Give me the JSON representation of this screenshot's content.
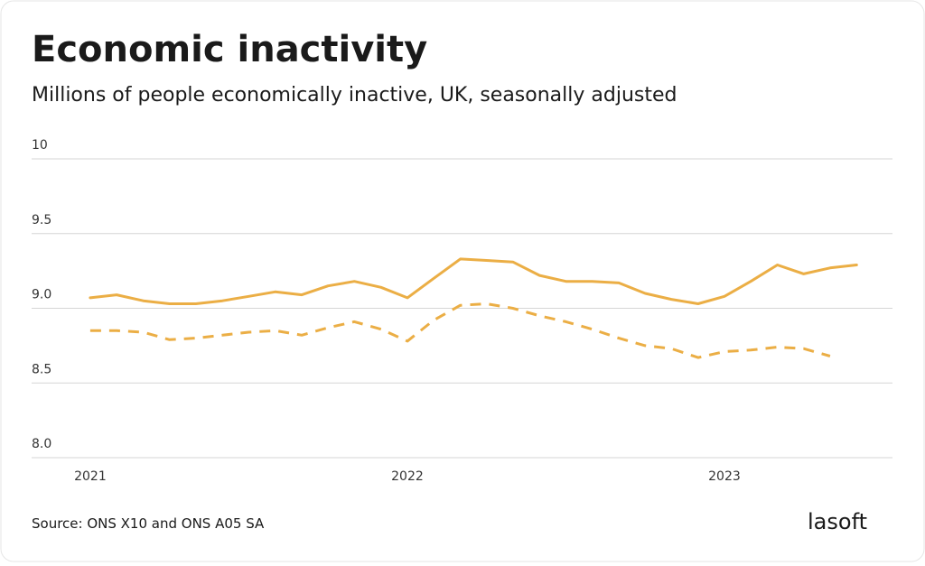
{
  "chart_data": {
    "type": "line",
    "title": "Economic inactivity",
    "subtitle": "Millions of people economically inactive, UK, seasonally adjusted",
    "source": "Source: ONS X10 and ONS A05 SA",
    "logo": "lasoft",
    "x": [
      2021,
      2021.083,
      2021.167,
      2021.25,
      2021.333,
      2021.417,
      2021.5,
      2021.583,
      2021.667,
      2021.75,
      2021.833,
      2021.917,
      2022,
      2022.083,
      2022.167,
      2022.25,
      2022.333,
      2022.417,
      2022.5,
      2022.583,
      2022.667,
      2022.75,
      2022.833,
      2022.917,
      2023,
      2023.083,
      2023.167,
      2023.25,
      2023.333,
      2023.417
    ],
    "series": [
      {
        "color": "#ebae45",
        "line_style": "solid",
        "values": [
          9.07,
          9.09,
          9.05,
          9.03,
          9.03,
          9.05,
          9.08,
          9.11,
          9.09,
          9.15,
          9.18,
          9.14,
          9.07,
          9.2,
          9.33,
          9.32,
          9.31,
          9.22,
          9.18,
          9.18,
          9.17,
          9.1,
          9.06,
          9.03,
          9.08,
          9.18,
          9.29,
          9.23,
          9.27,
          9.29
        ]
      },
      {
        "color": "#ebae45",
        "line_style": "dashed",
        "values": [
          8.85,
          8.85,
          8.84,
          8.79,
          8.8,
          8.82,
          8.84,
          8.85,
          8.82,
          8.87,
          8.91,
          8.86,
          8.78,
          8.92,
          9.02,
          9.03,
          9.0,
          8.95,
          8.91,
          8.86,
          8.8,
          8.75,
          8.73,
          8.67,
          8.71,
          8.72,
          8.74,
          8.73,
          8.68,
          null
        ]
      }
    ],
    "xlim": [
      2020.815,
      2023.53
    ],
    "xticks": [
      2021,
      2022,
      2023
    ],
    "ylim": [
      8,
      10
    ],
    "yticks": [
      {
        "value": 8,
        "label": "8.0"
      },
      8.5,
      {
        "value": 9,
        "label": "9.0"
      },
      9.5,
      10
    ],
    "grid": true
  }
}
